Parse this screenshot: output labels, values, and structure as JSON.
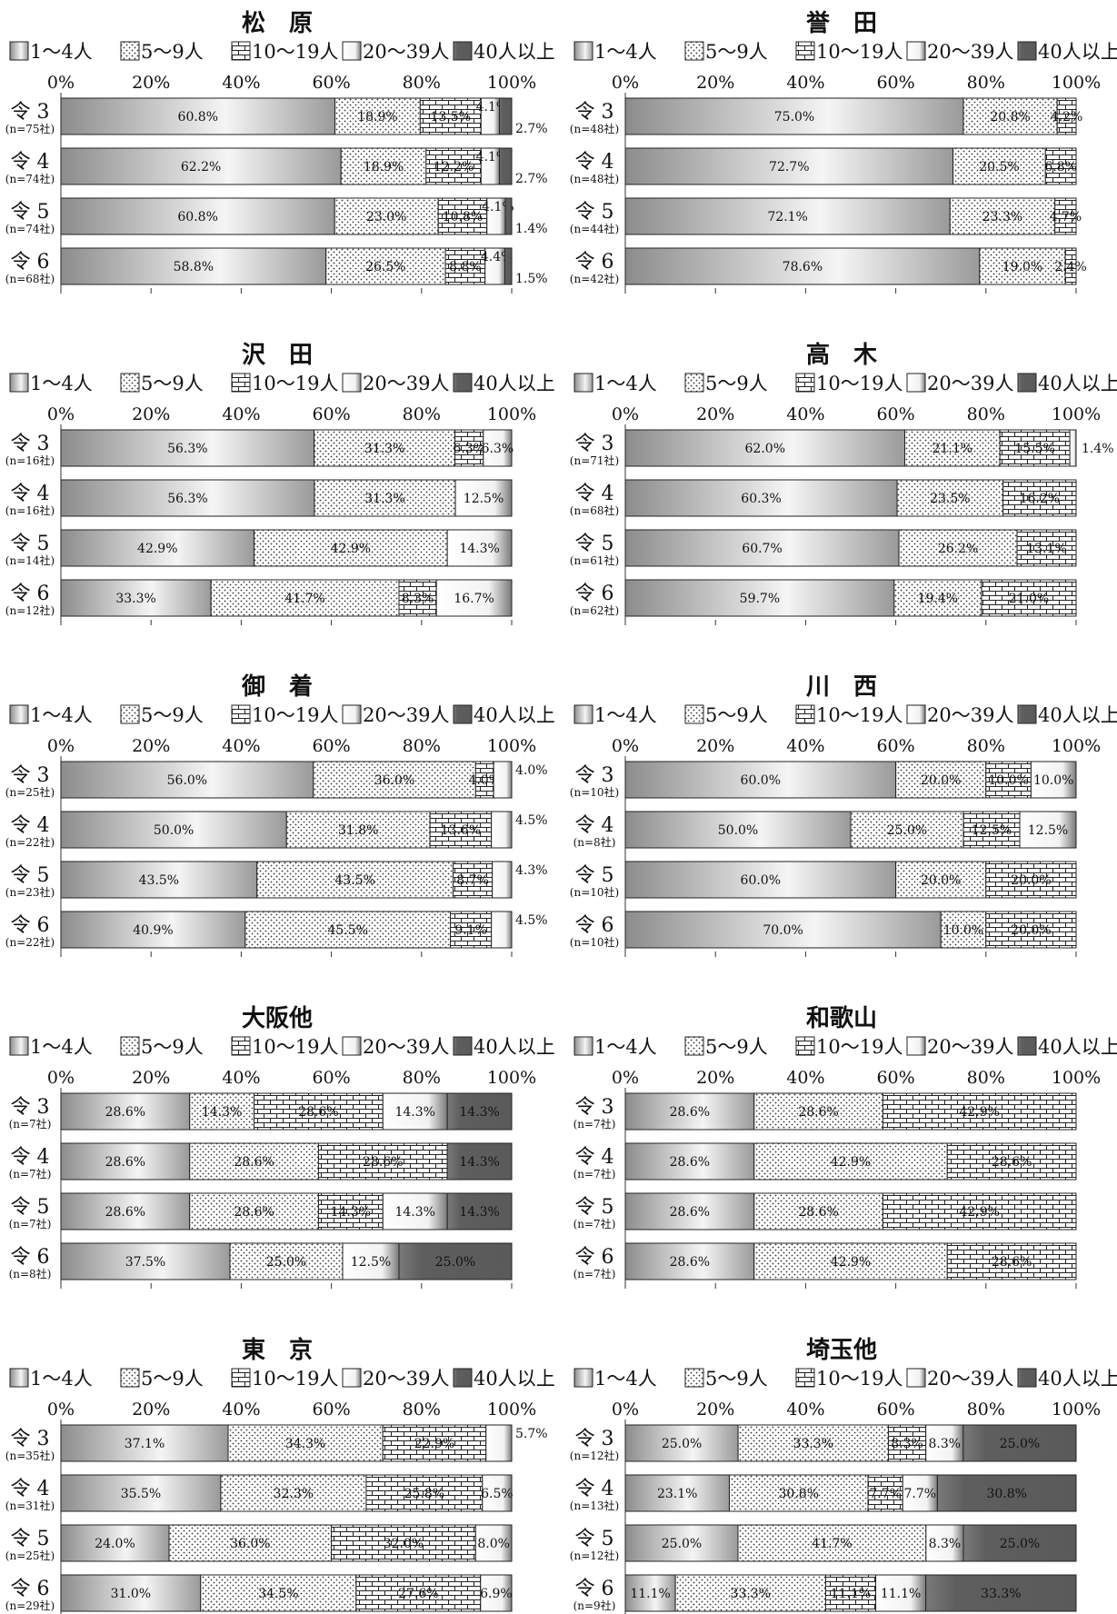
{
  "legend": [
    "1～4人",
    "5～9人",
    "10～19人",
    "20～39人",
    "40人以上"
  ],
  "ticks": [
    "0%",
    "20%",
    "40%",
    "60%",
    "80%",
    "100%"
  ],
  "chart_data": [
    {
      "type": "bar",
      "stacked": true,
      "orientation": "horizontal",
      "title": "松　原",
      "xlim": [
        0,
        100
      ],
      "categories": [
        {
          "label": "令 3",
          "n": "(n=75社)"
        },
        {
          "label": "令 4",
          "n": "(n=74社)"
        },
        {
          "label": "令 5",
          "n": "(n=74社)"
        },
        {
          "label": "令 6",
          "n": "(n=68社)"
        }
      ],
      "values": [
        [
          60.8,
          18.9,
          13.5,
          4.1,
          2.7
        ],
        [
          62.2,
          18.9,
          12.2,
          4.1,
          2.7
        ],
        [
          60.8,
          23.0,
          10.8,
          4.1,
          1.4
        ],
        [
          58.8,
          26.5,
          8.8,
          4.4,
          1.5
        ]
      ],
      "labels": [
        [
          "60.8%",
          "18.9%",
          "13.5%",
          "4.1%",
          "2.7%"
        ],
        [
          "62.2%",
          "18.9%",
          "12.2%",
          "4.1%",
          "2.7%"
        ],
        [
          "60.8%",
          "23.0%",
          "10.8%",
          "4.1%",
          "1.4%"
        ],
        [
          "58.8%",
          "26.5%",
          "8.8%",
          "4.4%",
          "1.5%"
        ]
      ]
    },
    {
      "type": "bar",
      "stacked": true,
      "orientation": "horizontal",
      "title": "誉　田",
      "xlim": [
        0,
        100
      ],
      "categories": [
        {
          "label": "令 3",
          "n": "(n=48社)"
        },
        {
          "label": "令 4",
          "n": "(n=48社)"
        },
        {
          "label": "令 5",
          "n": "(n=44社)"
        },
        {
          "label": "令 6",
          "n": "(n=42社)"
        }
      ],
      "values": [
        [
          75.0,
          20.8,
          4.2,
          0,
          0
        ],
        [
          72.7,
          20.5,
          6.8,
          0,
          0
        ],
        [
          72.1,
          23.3,
          4.7,
          0,
          0
        ],
        [
          78.6,
          19.0,
          2.4,
          0,
          0
        ]
      ],
      "labels": [
        [
          "75.0%",
          "20.8%",
          "4.2%",
          "",
          ""
        ],
        [
          "72.7%",
          "20.5%",
          "6.8%",
          "",
          ""
        ],
        [
          "72.1%",
          "23.3%",
          "4.7%",
          "",
          ""
        ],
        [
          "78.6%",
          "19.0%",
          "2.4%",
          "",
          ""
        ]
      ]
    },
    {
      "type": "bar",
      "stacked": true,
      "orientation": "horizontal",
      "title": "沢　田",
      "xlim": [
        0,
        100
      ],
      "categories": [
        {
          "label": "令 3",
          "n": "(n=16社)"
        },
        {
          "label": "令 4",
          "n": "(n=16社)"
        },
        {
          "label": "令 5",
          "n": "(n=14社)"
        },
        {
          "label": "令 6",
          "n": "(n=12社)"
        }
      ],
      "values": [
        [
          56.3,
          31.3,
          6.3,
          6.3,
          0
        ],
        [
          56.3,
          31.3,
          0,
          12.5,
          0
        ],
        [
          42.9,
          42.9,
          0,
          14.3,
          0
        ],
        [
          33.3,
          41.7,
          8.3,
          16.7,
          0
        ]
      ],
      "labels": [
        [
          "56.3%",
          "31.3%",
          "6.3%",
          "6.3%",
          ""
        ],
        [
          "56.3%",
          "31.3%",
          "",
          "12.5%",
          ""
        ],
        [
          "42.9%",
          "42.9%",
          "",
          "14.3%",
          ""
        ],
        [
          "33.3%",
          "41.7%",
          "8.3%",
          "16.7%",
          ""
        ]
      ]
    },
    {
      "type": "bar",
      "stacked": true,
      "orientation": "horizontal",
      "title": "高　木",
      "xlim": [
        0,
        100
      ],
      "categories": [
        {
          "label": "令 3",
          "n": "(n=71社)"
        },
        {
          "label": "令 4",
          "n": "(n=68社)"
        },
        {
          "label": "令 5",
          "n": "(n=61社)"
        },
        {
          "label": "令 6",
          "n": "(n=62社)"
        }
      ],
      "values": [
        [
          62.0,
          21.1,
          15.5,
          1.4,
          0
        ],
        [
          60.3,
          23.5,
          16.2,
          0,
          0
        ],
        [
          60.7,
          26.2,
          13.1,
          0,
          0
        ],
        [
          59.7,
          19.4,
          21.0,
          0,
          0
        ]
      ],
      "labels": [
        [
          "62.0%",
          "21.1%",
          "15.5%",
          "1.4%",
          ""
        ],
        [
          "60.3%",
          "23.5%",
          "16.2%",
          "",
          ""
        ],
        [
          "60.7%",
          "26.2%",
          "13.1%",
          "",
          ""
        ],
        [
          "59.7%",
          "19.4%",
          "21.0%",
          "",
          ""
        ]
      ]
    },
    {
      "type": "bar",
      "stacked": true,
      "orientation": "horizontal",
      "title": "御　着",
      "xlim": [
        0,
        100
      ],
      "categories": [
        {
          "label": "令 3",
          "n": "(n=25社)"
        },
        {
          "label": "令 4",
          "n": "(n=22社)"
        },
        {
          "label": "令 5",
          "n": "(n=23社)"
        },
        {
          "label": "令 6",
          "n": "(n=22社)"
        }
      ],
      "values": [
        [
          56.0,
          36.0,
          4.0,
          4.0,
          0
        ],
        [
          50.0,
          31.8,
          13.6,
          4.5,
          0
        ],
        [
          43.5,
          43.5,
          8.7,
          4.3,
          0
        ],
        [
          40.9,
          45.5,
          9.1,
          4.5,
          0
        ]
      ],
      "labels": [
        [
          "56.0%",
          "36.0%",
          "4.0%",
          "4.0%",
          ""
        ],
        [
          "50.0%",
          "31.8%",
          "13.6%",
          "4.5%",
          ""
        ],
        [
          "43.5%",
          "43.5%",
          "8.7%",
          "4.3%",
          ""
        ],
        [
          "40.9%",
          "45.5%",
          "9.1%",
          "4.5%",
          ""
        ]
      ]
    },
    {
      "type": "bar",
      "stacked": true,
      "orientation": "horizontal",
      "title": "川　西",
      "xlim": [
        0,
        100
      ],
      "categories": [
        {
          "label": "令 3",
          "n": "(n=10社)"
        },
        {
          "label": "令 4",
          "n": "(n=8社)"
        },
        {
          "label": "令 5",
          "n": "(n=10社)"
        },
        {
          "label": "令 6",
          "n": "(n=10社)"
        }
      ],
      "values": [
        [
          60.0,
          20.0,
          10.0,
          10.0,
          0
        ],
        [
          50.0,
          25.0,
          12.5,
          12.5,
          0
        ],
        [
          60.0,
          20.0,
          20.0,
          0,
          0
        ],
        [
          70.0,
          10.0,
          20.0,
          0,
          0
        ]
      ],
      "labels": [
        [
          "60.0%",
          "20.0%",
          "10.0%",
          "10.0%",
          ""
        ],
        [
          "50.0%",
          "25.0%",
          "12.5%",
          "12.5%",
          ""
        ],
        [
          "60.0%",
          "20.0%",
          "20.0%",
          "",
          ""
        ],
        [
          "70.0%",
          "10.0%",
          "20.0%",
          "",
          ""
        ]
      ]
    },
    {
      "type": "bar",
      "stacked": true,
      "orientation": "horizontal",
      "title": "大阪他",
      "xlim": [
        0,
        100
      ],
      "categories": [
        {
          "label": "令 3",
          "n": "(n=7社)"
        },
        {
          "label": "令 4",
          "n": "(n=7社)"
        },
        {
          "label": "令 5",
          "n": "(n=7社)"
        },
        {
          "label": "令 6",
          "n": "(n=8社)"
        }
      ],
      "values": [
        [
          28.6,
          14.3,
          28.6,
          14.3,
          14.3
        ],
        [
          28.6,
          28.6,
          28.6,
          0,
          14.3
        ],
        [
          28.6,
          28.6,
          14.3,
          14.3,
          14.3
        ],
        [
          37.5,
          25.0,
          0,
          12.5,
          25.0
        ]
      ],
      "labels": [
        [
          "28.6%",
          "14.3%",
          "28.6%",
          "14.3%",
          "14.3%"
        ],
        [
          "28.6%",
          "28.6%",
          "28.6%",
          "",
          "14.3%"
        ],
        [
          "28.6%",
          "28.6%",
          "14.3%",
          "14.3%",
          "14.3%"
        ],
        [
          "37.5%",
          "25.0%",
          "",
          "12.5%",
          "25.0%"
        ]
      ]
    },
    {
      "type": "bar",
      "stacked": true,
      "orientation": "horizontal",
      "title": "和歌山",
      "xlim": [
        0,
        100
      ],
      "categories": [
        {
          "label": "令 3",
          "n": "(n=7社)"
        },
        {
          "label": "令 4",
          "n": "(n=7社)"
        },
        {
          "label": "令 5",
          "n": "(n=7社)"
        },
        {
          "label": "令 6",
          "n": "(n=7社)"
        }
      ],
      "values": [
        [
          28.6,
          28.6,
          42.9,
          0,
          0
        ],
        [
          28.6,
          42.9,
          28.6,
          0,
          0
        ],
        [
          28.6,
          28.6,
          42.9,
          0,
          0
        ],
        [
          28.6,
          42.9,
          28.6,
          0,
          0
        ]
      ],
      "labels": [
        [
          "28.6%",
          "28.6%",
          "42.9%",
          "",
          ""
        ],
        [
          "28.6%",
          "42.9%",
          "28.6%",
          "",
          ""
        ],
        [
          "28.6%",
          "28.6%",
          "42.9%",
          "",
          ""
        ],
        [
          "28.6%",
          "42.9%",
          "28.6%",
          "",
          ""
        ]
      ]
    },
    {
      "type": "bar",
      "stacked": true,
      "orientation": "horizontal",
      "title": "東　京",
      "xlim": [
        0,
        100
      ],
      "categories": [
        {
          "label": "令 3",
          "n": "(n=35社)"
        },
        {
          "label": "令 4",
          "n": "(n=31社)"
        },
        {
          "label": "令 5",
          "n": "(n=25社)"
        },
        {
          "label": "令 6",
          "n": "(n=29社)"
        }
      ],
      "values": [
        [
          37.1,
          34.3,
          22.9,
          5.7,
          0
        ],
        [
          35.5,
          32.3,
          25.8,
          6.5,
          0
        ],
        [
          24.0,
          36.0,
          32.0,
          8.0,
          0
        ],
        [
          31.0,
          34.5,
          27.6,
          6.9,
          0
        ]
      ],
      "labels": [
        [
          "37.1%",
          "34.3%",
          "22.9%",
          "5.7%",
          ""
        ],
        [
          "35.5%",
          "32.3%",
          "25.8%",
          "6.5%",
          ""
        ],
        [
          "24.0%",
          "36.0%",
          "32.0%",
          "8.0%",
          ""
        ],
        [
          "31.0%",
          "34.5%",
          "27.6%",
          "6.9%",
          ""
        ]
      ]
    },
    {
      "type": "bar",
      "stacked": true,
      "orientation": "horizontal",
      "title": "埼玉他",
      "xlim": [
        0,
        100
      ],
      "categories": [
        {
          "label": "令 3",
          "n": "(n=12社)"
        },
        {
          "label": "令 4",
          "n": "(n=13社)"
        },
        {
          "label": "令 5",
          "n": "(n=12社)"
        },
        {
          "label": "令 6",
          "n": "(n=9社)"
        }
      ],
      "values": [
        [
          25.0,
          33.3,
          8.3,
          8.3,
          25.0
        ],
        [
          23.1,
          30.8,
          7.7,
          7.7,
          30.8
        ],
        [
          25.0,
          41.7,
          0,
          8.3,
          25.0
        ],
        [
          11.1,
          33.3,
          11.1,
          11.1,
          33.3
        ]
      ],
      "labels": [
        [
          "25.0%",
          "33.3%",
          "8.3%",
          "8.3%",
          "25.0%"
        ],
        [
          "23.1%",
          "30.8%",
          "7.7%",
          "7.7%",
          "30.8%"
        ],
        [
          "25.0%",
          "41.7%",
          "",
          "8.3%",
          "25.0%"
        ],
        [
          "11.1%",
          "33.3%",
          "11.1%",
          "11.1%",
          "33.3%"
        ]
      ]
    }
  ]
}
